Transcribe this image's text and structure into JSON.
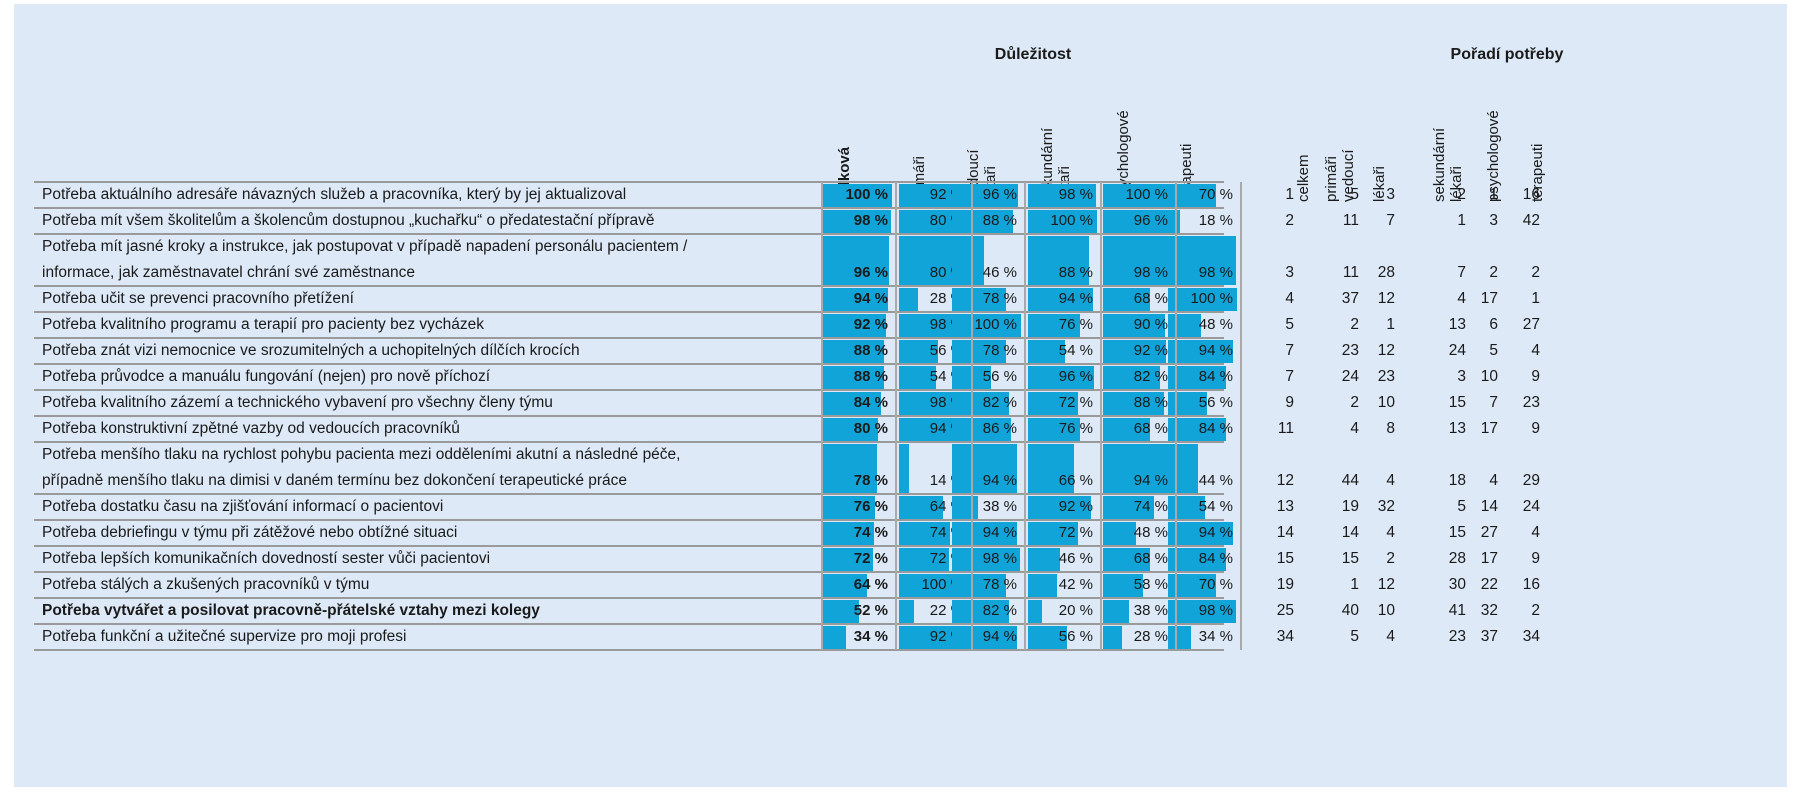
{
  "chart_data": {
    "type": "table",
    "groups": {
      "importance": "Důležitost",
      "rank": "Pořadí potřeby"
    },
    "importance_columns": [
      {
        "lines": [
          "celková"
        ],
        "bold": true
      },
      {
        "lines": [
          "primáři"
        ]
      },
      {
        "lines": [
          "vedoucí",
          "lékaři"
        ]
      },
      {
        "lines": [
          "sekundární",
          "lékaři"
        ]
      },
      {
        "lines": [
          "psychologové"
        ]
      },
      {
        "lines": [
          "terapeuti"
        ]
      }
    ],
    "rank_columns": [
      {
        "lines": [
          "celkem"
        ]
      },
      {
        "lines": [
          "primáři",
          "vedoucí"
        ]
      },
      {
        "lines": [
          "lékaři"
        ]
      },
      {
        "lines": [
          "sekundární",
          "lékaři"
        ]
      },
      {
        "lines": [
          "psychologové"
        ]
      },
      {
        "lines": [
          "terapeuti"
        ]
      }
    ],
    "value_unit": "%",
    "value_range": [
      0,
      100
    ],
    "bar_color": "#11a4d9",
    "rows": [
      {
        "label": [
          "Potřeba aktuálního adresáře návazných služeb a pracovníka, který by jej aktualizoval"
        ],
        "importance": [
          100,
          92,
          96,
          98,
          100,
          70
        ],
        "rank": [
          1,
          5,
          3,
          2,
          1,
          16
        ]
      },
      {
        "label": [
          "Potřeba mít všem školitelům a školencům dostupnou „kuchařku“ o předatestační přípravě"
        ],
        "importance": [
          98,
          80,
          88,
          100,
          96,
          18
        ],
        "rank": [
          2,
          11,
          7,
          1,
          3,
          42
        ]
      },
      {
        "label": [
          "Potřeba mít jasné kroky a instrukce, jak postupovat v případě napadení personálu pacientem /",
          "informace, jak zaměstnavatel chrání své zaměstnance"
        ],
        "importance": [
          96,
          80,
          46,
          88,
          98,
          98
        ],
        "rank": [
          3,
          11,
          28,
          7,
          2,
          2
        ]
      },
      {
        "label": [
          "Potřeba učit se prevenci pracovního přetížení"
        ],
        "importance": [
          94,
          28,
          78,
          94,
          68,
          100
        ],
        "rank": [
          4,
          37,
          12,
          4,
          17,
          1
        ]
      },
      {
        "label": [
          "Potřeba kvalitního programu a terapií pro pacienty bez vycházek"
        ],
        "importance": [
          92,
          98,
          100,
          76,
          90,
          48
        ],
        "rank": [
          5,
          2,
          1,
          13,
          6,
          27
        ]
      },
      {
        "label": [
          "Potřeba znát vizi nemocnice ve srozumitelných a uchopitelných dílčích krocích"
        ],
        "importance": [
          88,
          56,
          78,
          54,
          92,
          94
        ],
        "rank": [
          7,
          23,
          12,
          24,
          5,
          4
        ]
      },
      {
        "label": [
          "Potřeba průvodce a manuálu fungování (nejen) pro nově příchozí"
        ],
        "importance": [
          88,
          54,
          56,
          96,
          82,
          84
        ],
        "rank": [
          7,
          24,
          23,
          3,
          10,
          9
        ]
      },
      {
        "label": [
          "Potřeba kvalitního zázemí a technického vybavení pro všechny členy týmu"
        ],
        "importance": [
          84,
          98,
          82,
          72,
          88,
          56
        ],
        "rank": [
          9,
          2,
          10,
          15,
          7,
          23
        ]
      },
      {
        "label": [
          "Potřeba konstruktivní zpětné vazby od vedoucích pracovníků"
        ],
        "importance": [
          80,
          94,
          86,
          76,
          68,
          84
        ],
        "rank": [
          11,
          4,
          8,
          13,
          17,
          9
        ]
      },
      {
        "label": [
          "Potřeba menšího tlaku na rychlost pohybu pacienta mezi odděleními akutní a následné péče,",
          "případně menšího tlaku na dimisi v daném termínu bez dokončení terapeutické práce"
        ],
        "importance": [
          78,
          14,
          94,
          66,
          94,
          44
        ],
        "rank": [
          12,
          44,
          4,
          18,
          4,
          29
        ]
      },
      {
        "label": [
          "Potřeba dostatku času na zjišťování informací o pacientovi"
        ],
        "importance": [
          76,
          64,
          38,
          92,
          74,
          54
        ],
        "rank": [
          13,
          19,
          32,
          5,
          14,
          24
        ]
      },
      {
        "label": [
          "Potřeba debriefingu v týmu při zátěžové nebo obtížné situaci"
        ],
        "importance": [
          74,
          74,
          94,
          72,
          48,
          94
        ],
        "rank": [
          14,
          14,
          4,
          15,
          27,
          4
        ]
      },
      {
        "label": [
          "Potřeba lepších komunikačních dovedností sester vůči pacientovi"
        ],
        "importance": [
          72,
          72,
          98,
          46,
          68,
          84
        ],
        "rank": [
          15,
          15,
          2,
          28,
          17,
          9
        ]
      },
      {
        "label": [
          "Potřeba stálých a zkušených pracovníků v týmu"
        ],
        "importance": [
          64,
          100,
          78,
          42,
          58,
          70
        ],
        "rank": [
          19,
          1,
          12,
          30,
          22,
          16
        ]
      },
      {
        "label": [
          "Potřeba vytvářet a posilovat pracovně-přátelské vztahy mezi kolegy"
        ],
        "label_bold": true,
        "importance": [
          52,
          22,
          82,
          20,
          38,
          98
        ],
        "rank": [
          25,
          40,
          10,
          41,
          32,
          2
        ]
      },
      {
        "label": [
          "Potřeba funkční a užitečné supervize pro moji profesi"
        ],
        "importance": [
          34,
          92,
          94,
          56,
          28,
          34
        ],
        "rank": [
          34,
          5,
          4,
          23,
          37,
          34
        ]
      }
    ]
  }
}
